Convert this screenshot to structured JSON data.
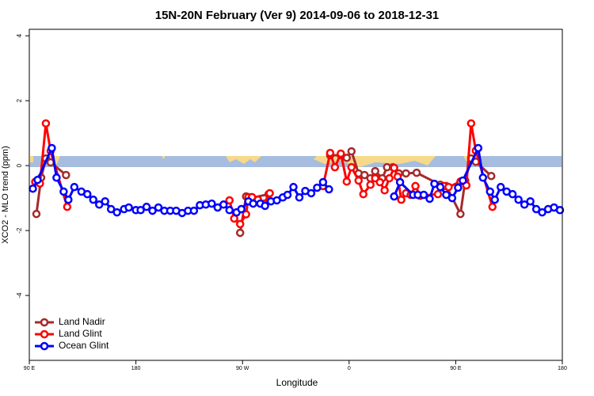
{
  "chart_data": {
    "type": "line",
    "title": "15N-20N February (Ver 9)   2014-09-06 to 2018-12-31",
    "xlabel": "Longitude",
    "ylabel": "XCO2 - MLO trend (ppm)",
    "xlim": [
      90,
      540
    ],
    "xticks": [
      {
        "value": 90,
        "label": "90 E"
      },
      180,
      {
        "value": 270,
        "label": "90 W"
      },
      {
        "value": 360,
        "label": "0"
      },
      {
        "value": 450,
        "label": "90 E"
      },
      {
        "value": 540,
        "label": "180"
      }
    ],
    "ylim": [
      -6,
      4.2
    ],
    "yticks": [
      -4,
      -2,
      0,
      2,
      4
    ],
    "legend": "bottomleft",
    "series": [
      {
        "name": "Land Nadir",
        "color": "#a52a2a",
        "x": [
          96,
          100,
          104,
          108,
          121,
          190,
          268,
          273,
          277,
          292,
          315,
          344,
          353,
          358,
          362,
          368,
          373,
          378,
          382,
          388,
          392,
          397,
          402,
          408,
          417,
          437,
          442,
          454,
          458,
          463,
          467,
          480
        ],
        "values": [
          -1.49,
          -0.37,
          0.22,
          0.1,
          -0.29,
          null,
          -2.07,
          -0.95,
          -1.0,
          -0.88,
          null,
          0.32,
          0.32,
          0.24,
          0.44,
          -0.24,
          -0.29,
          -0.39,
          -0.17,
          -0.39,
          -0.05,
          -0.05,
          -0.24,
          -0.24,
          -0.22,
          -0.59,
          -0.63,
          -1.49,
          -0.46,
          0.22,
          0.12,
          -0.32
        ]
      },
      {
        "name": "Land Glint",
        "color": "#ff0000",
        "x": [
          95,
          99,
          104,
          108,
          122,
          190,
          259,
          263,
          268,
          273,
          275,
          278,
          283,
          288,
          293,
          315,
          338,
          344,
          348,
          353,
          358,
          362,
          368,
          372,
          378,
          382,
          386,
          390,
          394,
          398,
          401,
          404,
          408,
          412,
          416,
          420,
          435,
          440,
          444,
          454,
          459,
          463,
          467,
          481
        ],
        "values": [
          -0.5,
          -0.55,
          1.3,
          0.45,
          -1.27,
          null,
          -1.07,
          -1.63,
          -1.8,
          -1.5,
          -0.97,
          -0.97,
          -1.05,
          -1.17,
          -0.85,
          null,
          -0.63,
          0.39,
          -0.05,
          0.37,
          -0.49,
          -0.05,
          -0.46,
          -0.88,
          -0.59,
          -0.39,
          -0.51,
          -0.76,
          -0.39,
          -0.07,
          -0.34,
          -1.05,
          -0.85,
          -0.9,
          -0.63,
          -0.93,
          -0.88,
          -0.63,
          -0.66,
          -0.49,
          -0.61,
          1.3,
          0.46,
          -1.27
        ]
      },
      {
        "name": "Ocean Glint",
        "color": "#0000ff",
        "x": [
          93,
          97,
          109,
          113,
          119,
          123,
          128,
          134,
          139,
          144,
          149,
          154,
          159,
          164,
          170,
          174,
          180,
          184,
          189,
          194,
          199,
          204,
          209,
          214,
          219,
          224,
          229,
          234,
          239,
          244,
          249,
          254,
          259,
          265,
          269,
          275,
          279,
          285,
          289,
          294,
          299,
          304,
          308,
          313,
          318,
          323,
          328,
          333,
          338,
          343,
          370,
          398,
          403,
          414,
          418,
          423,
          428,
          432,
          437,
          442,
          447,
          452,
          456,
          469,
          473,
          479,
          483,
          488,
          493,
          498,
          503,
          508,
          513,
          518,
          523,
          528,
          533,
          538
        ],
        "values": [
          -0.71,
          -0.44,
          0.54,
          -0.37,
          -0.8,
          -1.05,
          -0.66,
          -0.8,
          -0.88,
          -1.05,
          -1.2,
          -1.1,
          -1.34,
          -1.44,
          -1.34,
          -1.29,
          -1.37,
          -1.37,
          -1.27,
          -1.39,
          -1.29,
          -1.39,
          -1.39,
          -1.39,
          -1.46,
          -1.39,
          -1.39,
          -1.22,
          -1.2,
          -1.17,
          -1.29,
          -1.2,
          -1.37,
          -1.44,
          -1.34,
          -1.1,
          -1.17,
          -1.17,
          -1.24,
          -1.1,
          -1.07,
          -0.98,
          -0.9,
          -0.66,
          -0.98,
          -0.78,
          -0.85,
          -0.68,
          -0.51,
          -0.73,
          null,
          -0.95,
          -0.51,
          -0.9,
          -0.9,
          -0.9,
          -1.02,
          -0.56,
          -0.66,
          -0.9,
          -1.0,
          -0.68,
          -0.46,
          0.54,
          -0.37,
          -0.8,
          -1.05,
          -0.66,
          -0.8,
          -0.88,
          -1.05,
          -1.2,
          -1.1,
          -1.34,
          -1.44,
          -1.34,
          -1.29,
          -1.37
        ]
      }
    ]
  }
}
